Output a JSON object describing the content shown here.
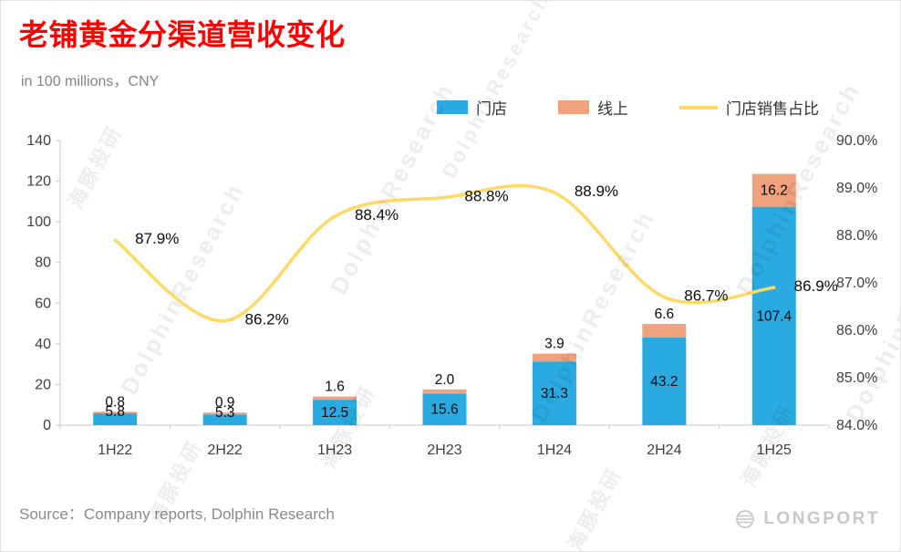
{
  "header": {
    "title": "老铺黄金分渠道营收变化",
    "subtitle": "in 100 millions，CNY"
  },
  "legend": [
    {
      "label": "门店",
      "color": "#29ABE2"
    },
    {
      "label": "线上",
      "color": "#F0A17D"
    },
    {
      "label": "门店销售占比",
      "color": "#FFD966"
    }
  ],
  "chart_data": {
    "type": "bar+line",
    "title": "老铺黄金分渠道营收变化",
    "unit": "in 100 millions，CNY",
    "categories": [
      "1H22",
      "2H22",
      "1H23",
      "2H23",
      "1H24",
      "2H24",
      "1H25"
    ],
    "series": [
      {
        "name": "门店",
        "chart": "bar",
        "stack": true,
        "color": "#29ABE2",
        "values": [
          5.8,
          5.3,
          12.5,
          15.6,
          31.3,
          43.2,
          107.4
        ],
        "labels": [
          "5.8",
          "5.3",
          "12.5",
          "15.6",
          "31.3",
          "43.2",
          "107.4"
        ]
      },
      {
        "name": "线上",
        "chart": "bar",
        "stack": true,
        "color": "#F0A17D",
        "values": [
          0.8,
          0.9,
          1.6,
          2.0,
          3.9,
          6.6,
          16.2
        ],
        "labels": [
          "0.8",
          "0.9",
          "1.6",
          "2.0",
          "3.9",
          "6.6",
          "16.2"
        ]
      },
      {
        "name": "门店销售占比",
        "chart": "line",
        "axis": "right",
        "color": "#FFD966",
        "values": [
          87.9,
          86.2,
          88.4,
          88.8,
          88.9,
          86.7,
          86.9
        ],
        "labels": [
          "87.9%",
          "86.2%",
          "88.4%",
          "88.8%",
          "88.9%",
          "86.7%",
          "86.9%"
        ]
      }
    ],
    "left_axis": {
      "min": 0,
      "max": 140,
      "step": 20,
      "ticks": [
        "0",
        "20",
        "40",
        "60",
        "80",
        "100",
        "120",
        "140"
      ]
    },
    "right_axis": {
      "min": 84,
      "max": 90,
      "step": 1,
      "ticks": [
        "84.0%",
        "85.0%",
        "86.0%",
        "87.0%",
        "88.0%",
        "89.0%",
        "90.0%"
      ]
    },
    "grid": false,
    "legend_position": "top"
  },
  "source": "Source：Company reports, Dolphin Research",
  "watermark": {
    "en": "DolphinResearch",
    "zh": "海豚投研"
  },
  "footer": {
    "logo_text": "LONGPORT"
  }
}
